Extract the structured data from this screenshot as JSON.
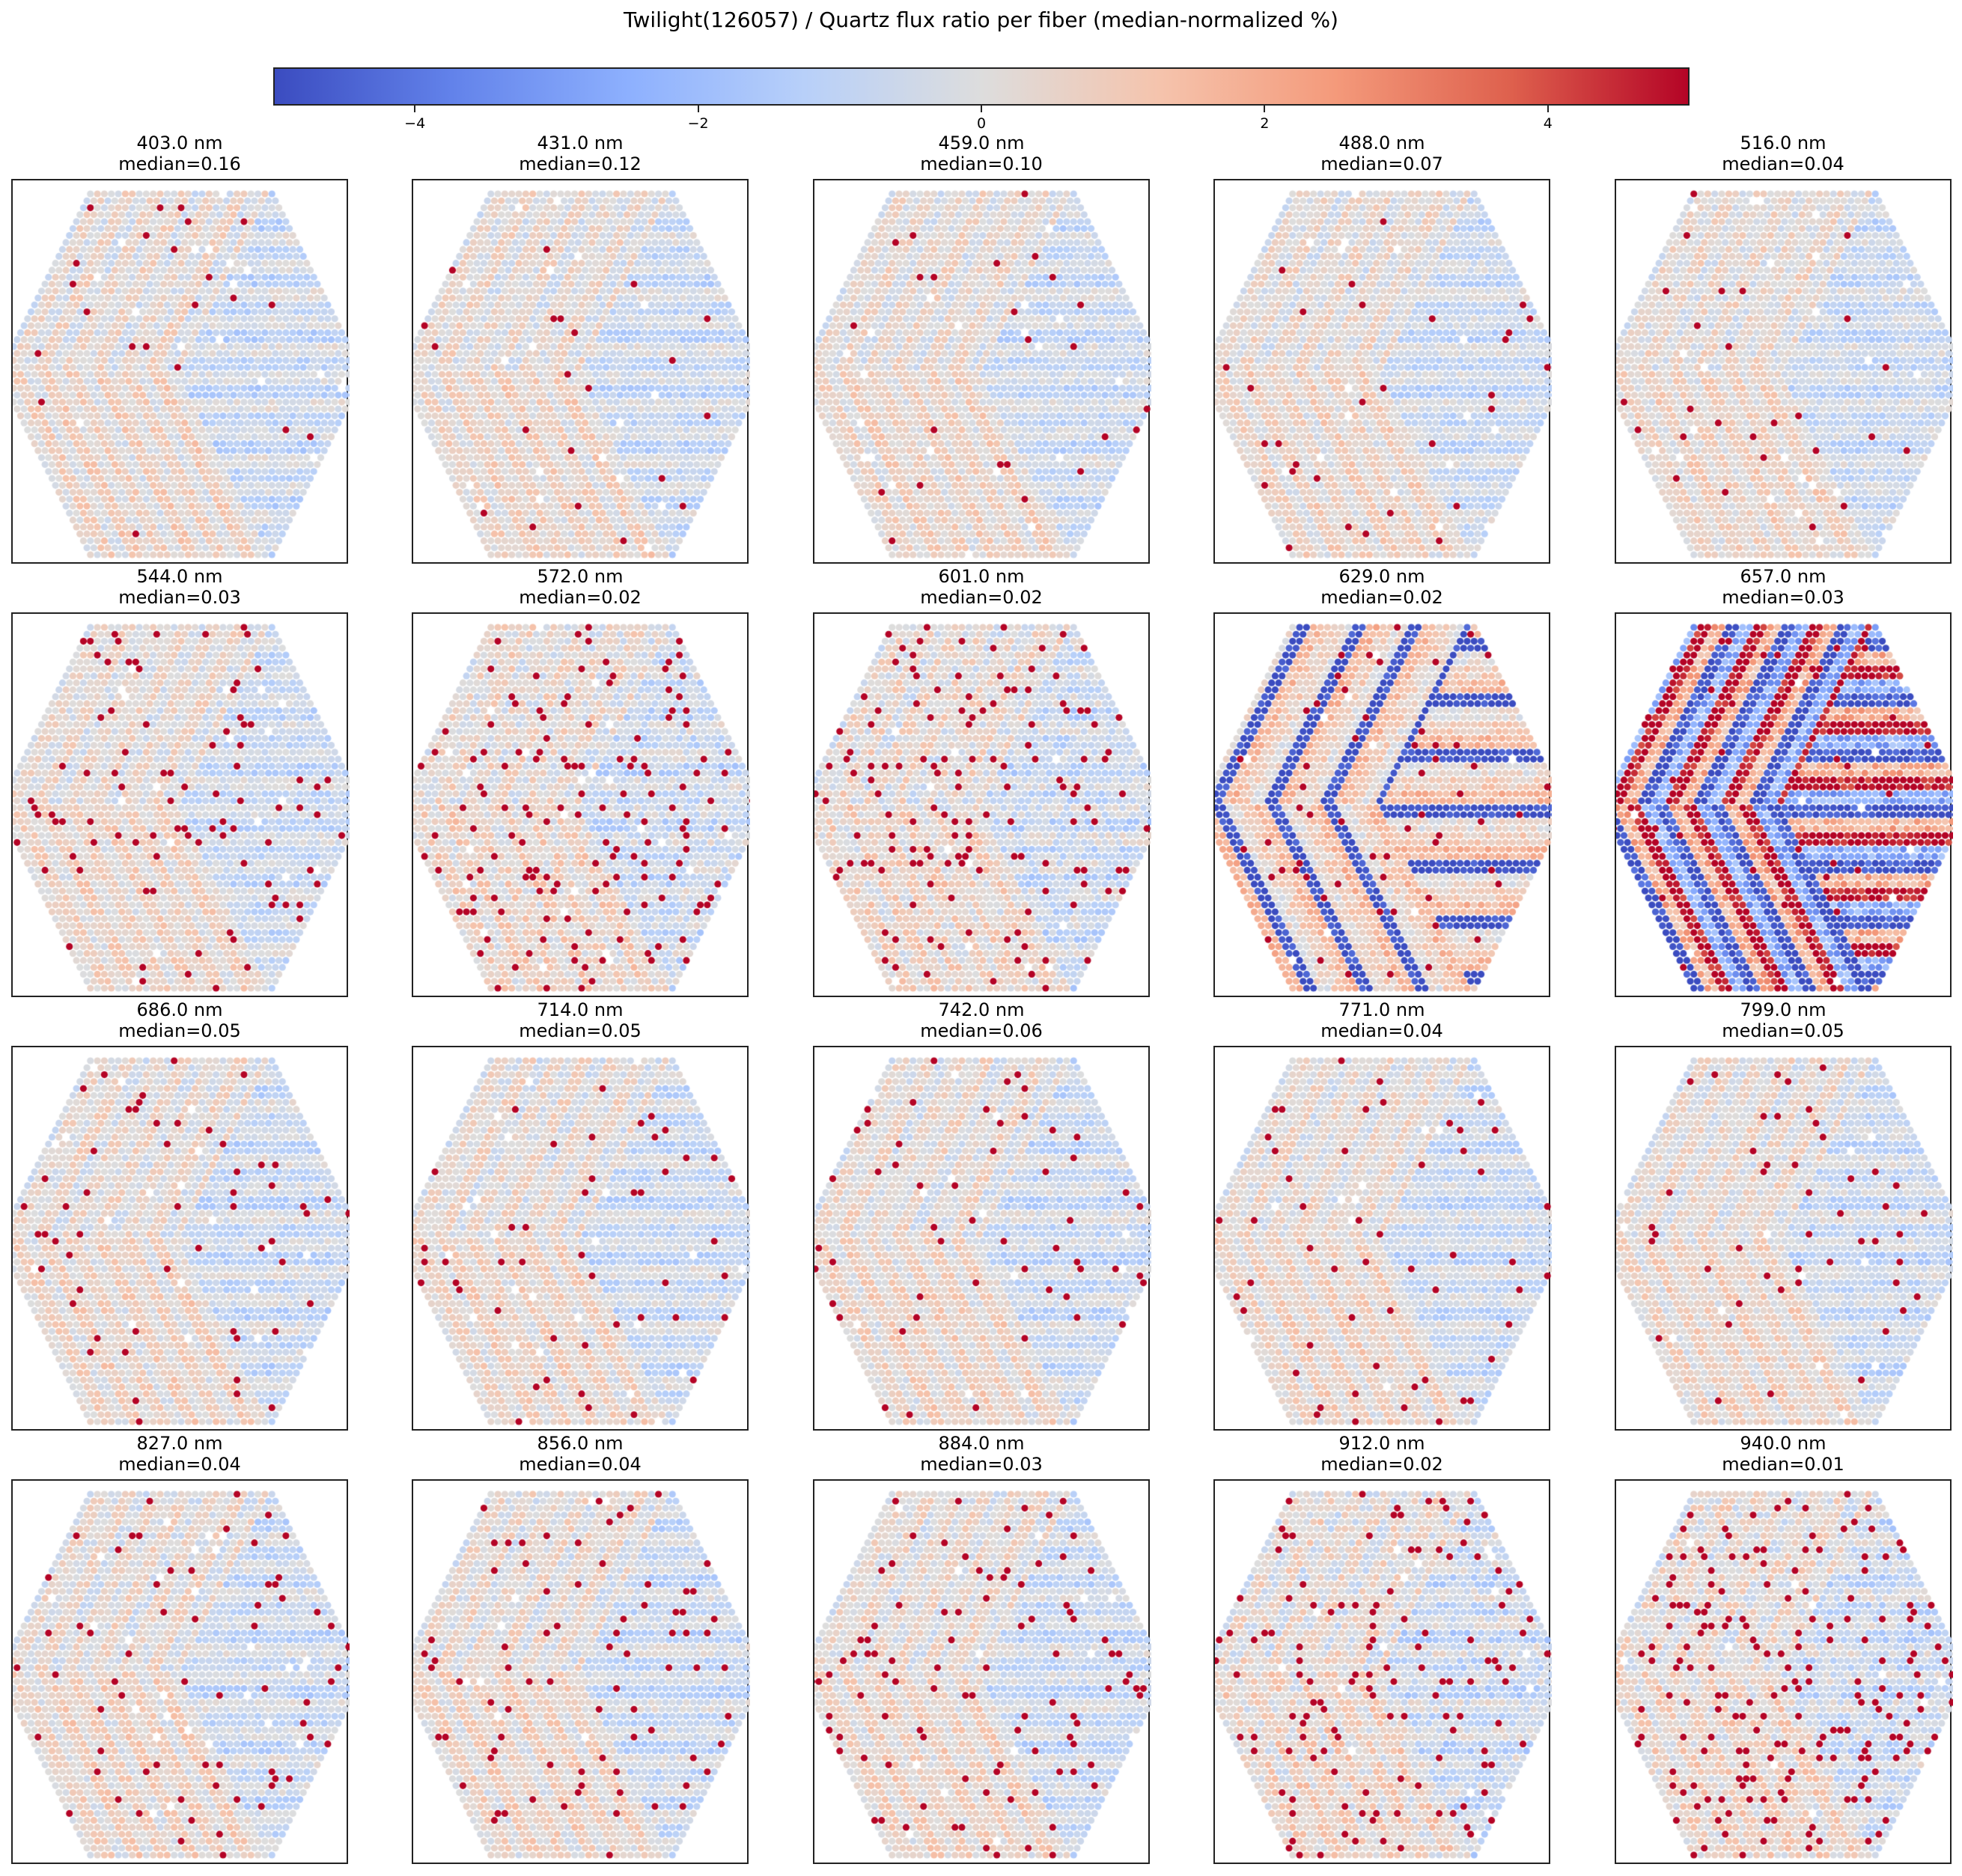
{
  "chart_data": {
    "type": "heatmap",
    "subtype": "hexagonal fiber map small multiples",
    "title": "Twilight(126057) / Quartz flux ratio per fiber (median-normalized %)",
    "colorbar": {
      "colormap": "coolwarm",
      "vmin": -5,
      "vmax": 5,
      "ticks": [
        -4,
        -2,
        0,
        2,
        4
      ],
      "tick_labels": [
        "−4",
        "−2",
        "0",
        "2",
        "4"
      ],
      "orientation": "horizontal",
      "placement": "top"
    },
    "grid": {
      "rows": 4,
      "cols": 5
    },
    "panels": [
      {
        "wavelength": "403.0 nm",
        "median": 0.16,
        "median_label": "median=0.16",
        "pattern": "calm",
        "outliers": 0.012,
        "stripe": 0.9
      },
      {
        "wavelength": "431.0 nm",
        "median": 0.12,
        "median_label": "median=0.12",
        "pattern": "calm",
        "outliers": 0.012,
        "stripe": 0.8
      },
      {
        "wavelength": "459.0 nm",
        "median": 0.1,
        "median_label": "median=0.10",
        "pattern": "calm",
        "outliers": 0.014,
        "stripe": 0.75
      },
      {
        "wavelength": "488.0 nm",
        "median": 0.07,
        "median_label": "median=0.07",
        "pattern": "calm",
        "outliers": 0.016,
        "stripe": 0.75
      },
      {
        "wavelength": "516.0 nm",
        "median": 0.04,
        "median_label": "median=0.04",
        "pattern": "calm",
        "outliers": 0.02,
        "stripe": 0.7
      },
      {
        "wavelength": "544.0 nm",
        "median": 0.03,
        "median_label": "median=0.03",
        "pattern": "calm",
        "outliers": 0.035,
        "stripe": 0.7
      },
      {
        "wavelength": "572.0 nm",
        "median": 0.02,
        "median_label": "median=0.02",
        "pattern": "noisy",
        "outliers": 0.07,
        "stripe": 0.6
      },
      {
        "wavelength": "601.0 nm",
        "median": 0.02,
        "median_label": "median=0.02",
        "pattern": "noisy",
        "outliers": 0.06,
        "stripe": 0.6
      },
      {
        "wavelength": "629.0 nm",
        "median": 0.02,
        "median_label": "median=0.02",
        "pattern": "striped",
        "outliers": 0.03,
        "stripe": 4.0
      },
      {
        "wavelength": "657.0 nm",
        "median": 0.03,
        "median_label": "median=0.03",
        "pattern": "strong-striped",
        "outliers": 0.02,
        "stripe": 6.0
      },
      {
        "wavelength": "686.0 nm",
        "median": 0.05,
        "median_label": "median=0.05",
        "pattern": "calm",
        "outliers": 0.03,
        "stripe": 0.8
      },
      {
        "wavelength": "714.0 nm",
        "median": 0.05,
        "median_label": "median=0.05",
        "pattern": "calm",
        "outliers": 0.03,
        "stripe": 0.8
      },
      {
        "wavelength": "742.0 nm",
        "median": 0.06,
        "median_label": "median=0.06",
        "pattern": "calm",
        "outliers": 0.03,
        "stripe": 0.8
      },
      {
        "wavelength": "771.0 nm",
        "median": 0.04,
        "median_label": "median=0.04",
        "pattern": "calm",
        "outliers": 0.03,
        "stripe": 0.75
      },
      {
        "wavelength": "799.0 nm",
        "median": 0.05,
        "median_label": "median=0.05",
        "pattern": "calm",
        "outliers": 0.03,
        "stripe": 0.75
      },
      {
        "wavelength": "827.0 nm",
        "median": 0.04,
        "median_label": "median=0.04",
        "pattern": "calm",
        "outliers": 0.035,
        "stripe": 0.8
      },
      {
        "wavelength": "856.0 nm",
        "median": 0.04,
        "median_label": "median=0.04",
        "pattern": "calm",
        "outliers": 0.035,
        "stripe": 0.8
      },
      {
        "wavelength": "884.0 nm",
        "median": 0.03,
        "median_label": "median=0.03",
        "pattern": "calm",
        "outliers": 0.045,
        "stripe": 0.75
      },
      {
        "wavelength": "912.0 nm",
        "median": 0.02,
        "median_label": "median=0.02",
        "pattern": "noisy",
        "outliers": 0.07,
        "stripe": 0.7
      },
      {
        "wavelength": "940.0 nm",
        "median": 0.01,
        "median_label": "median=0.01",
        "pattern": "noisy",
        "outliers": 0.1,
        "stripe": 0.6
      }
    ]
  }
}
